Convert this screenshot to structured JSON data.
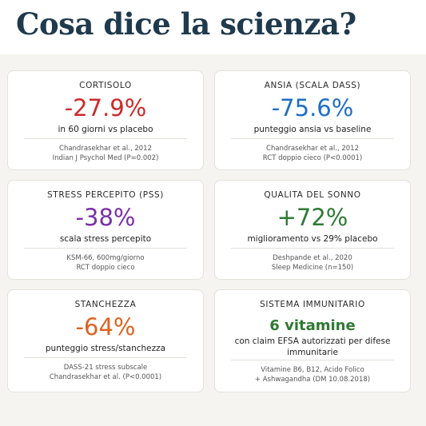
{
  "header": {
    "title": "Cosa dice la scienza?"
  },
  "colors": {
    "title": "#1f3a4d",
    "red": "#cc2a2a",
    "blue": "#1e6fc4",
    "purple": "#7a2fa8",
    "green": "#2f7a33",
    "orange": "#e0611f"
  },
  "cards": [
    {
      "title": "CORTISOLO",
      "value": "-27.9%",
      "value_color": "#cc2a2a",
      "description": "in 60 giorni vs placebo",
      "source_line1": "Chandrasekhar et al., 2012",
      "source_line2": "Indian J Psychol Med (P=0.002)"
    },
    {
      "title": "ANSIA (SCALA DASS)",
      "value": "-75.6%",
      "value_color": "#1e6fc4",
      "description": "punteggio ansia vs baseline",
      "source_line1": "Chandrasekhar et al., 2012",
      "source_line2": "RCT doppio cieco (P<0.0001)"
    },
    {
      "title": "STRESS PERCEPITO (PSS)",
      "value": "-38%",
      "value_color": "#7a2fa8",
      "description": "scala stress percepito",
      "source_line1": "KSM-66, 600mg/giorno",
      "source_line2": "RCT doppio cieco"
    },
    {
      "title": "QUALITA DEL SONNO",
      "value": "+72%",
      "value_color": "#2f7a33",
      "description": "miglioramento vs 29% placebo",
      "source_line1": "Deshpande et al., 2020",
      "source_line2": "Sleep Medicine (n=150)"
    },
    {
      "title": "STANCHEZZA",
      "value": "-64%",
      "value_color": "#e0611f",
      "description": "punteggio stress/stanchezza",
      "source_line1": "DASS-21 stress subscale",
      "source_line2": "Chandrasekhar et al. (P<0.0001)"
    },
    {
      "title": "SISTEMA IMMUNITARIO",
      "value": "6 vitamine",
      "value_color": "#2f7a33",
      "description_line1": "con claim EFSA autorizzati per difese",
      "description_line2": "immunitarie",
      "source_line1": "Vitamine B6, B12, Acido Folico",
      "source_line2": "+ Ashwagandha (DM 10.08.2018)"
    }
  ]
}
